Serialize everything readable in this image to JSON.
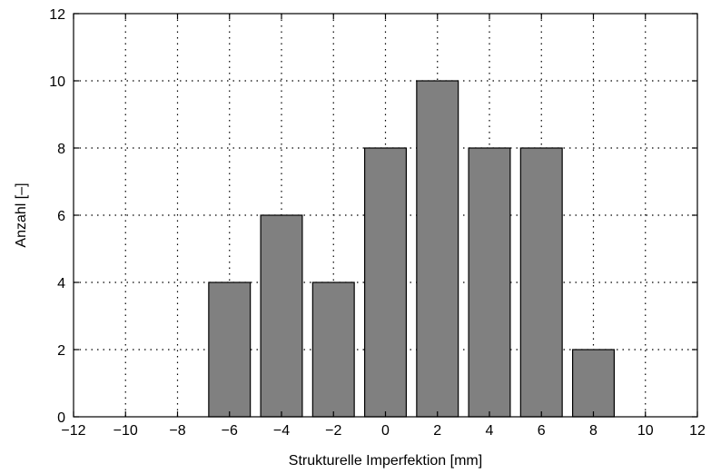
{
  "chart_data": {
    "type": "bar",
    "title": "",
    "xlabel": "Strukturelle Imperfektion [mm]",
    "ylabel": "Anzahl [–]",
    "xlim": [
      -12,
      12
    ],
    "ylim": [
      0,
      12
    ],
    "xticks": [
      -12,
      -10,
      -8,
      -6,
      -4,
      -2,
      0,
      2,
      4,
      6,
      8,
      10,
      12
    ],
    "yticks": [
      0,
      2,
      4,
      6,
      8,
      10,
      12
    ],
    "bar_width": 1.6,
    "grid": true,
    "bar_color": "#808080",
    "x": [
      -6,
      -4,
      -2,
      0,
      2,
      4,
      6,
      8
    ],
    "values": [
      4,
      6,
      4,
      8,
      10,
      8,
      8,
      2
    ]
  }
}
